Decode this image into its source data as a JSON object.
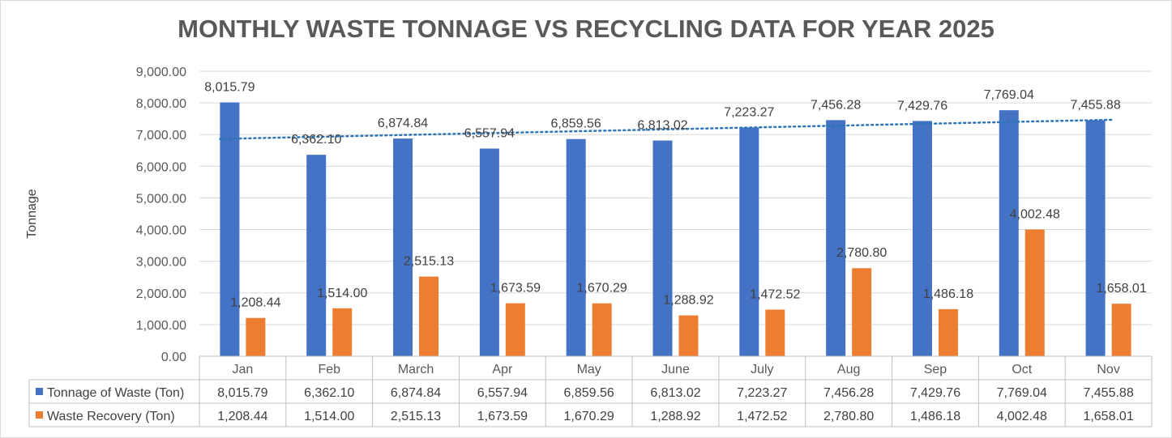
{
  "chart_data": {
    "type": "bar",
    "title": "MONTHLY WASTE TONNAGE VS RECYCLING DATA FOR YEAR 2025",
    "xlabel": "",
    "ylabel": "Tonnage",
    "ylim": [
      0,
      9000
    ],
    "yticks": [
      "0.00",
      "1,000.00",
      "2,000.00",
      "3,000.00",
      "4,000.00",
      "5,000.00",
      "6,000.00",
      "7,000.00",
      "8,000.00",
      "9,000.00"
    ],
    "categories": [
      "Jan",
      "Feb",
      "March",
      "Apr",
      "May",
      "June",
      "July",
      "Aug",
      "Sep",
      "Oct",
      "Nov"
    ],
    "grid": true,
    "legend": "data-table",
    "trendline": {
      "series": "Tonnage of Waste (Ton)",
      "type": "linear",
      "style": "dotted"
    },
    "series": [
      {
        "name": "Tonnage of Waste (Ton)",
        "color": "#4472c4",
        "values": [
          8015.79,
          6362.1,
          6874.84,
          6557.94,
          6859.56,
          6813.02,
          7223.27,
          7456.28,
          7429.76,
          7769.04,
          7455.88
        ],
        "labels": [
          "8,015.79",
          "6,362.10",
          "6,874.84",
          "6,557.94",
          "6,859.56",
          "6,813.02",
          "7,223.27",
          "7,456.28",
          "7,429.76",
          "7,769.04",
          "7,455.88"
        ]
      },
      {
        "name": "Waste Recovery (Ton)",
        "color": "#ed7d31",
        "values": [
          1208.44,
          1514.0,
          2515.13,
          1673.59,
          1670.29,
          1288.92,
          1472.52,
          2780.8,
          1486.18,
          4002.48,
          1658.01
        ],
        "labels": [
          "1,208.44",
          "1,514.00",
          "2,515.13",
          "1,673.59",
          "1,670.29",
          "1,288.92",
          "1,472.52",
          "2,780.80",
          "1,486.18",
          "4,002.48",
          "1,658.01"
        ]
      }
    ]
  }
}
